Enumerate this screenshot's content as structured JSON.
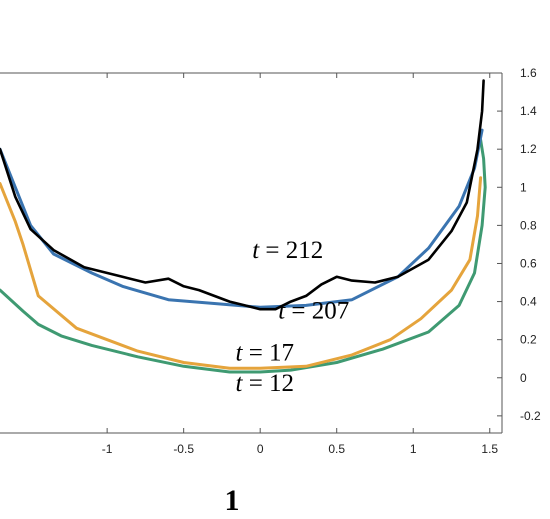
{
  "chart_data": {
    "type": "line",
    "xlim": [
      -1.7,
      1.58
    ],
    "ylim": [
      -0.29,
      1.6
    ],
    "x_ticks": [
      "-1",
      "-0.5",
      "0",
      "0.5",
      "1",
      "1.5"
    ],
    "x_tick_values": [
      -1,
      -0.5,
      0,
      0.5,
      1,
      1.5
    ],
    "y_ticks": [
      "1.6",
      "1.4",
      "1.2",
      "1",
      "0.8",
      "0.6",
      "0.4",
      "0.2",
      "0",
      "-0.2"
    ],
    "y_tick_values": [
      1.6,
      1.4,
      1.2,
      1,
      0.8,
      0.6,
      0.4,
      0.2,
      0,
      -0.2
    ],
    "y_axis_side": "right",
    "grid": false,
    "bottom_label": "1",
    "series": [
      {
        "name": "t = 12",
        "color": "#3f9a72",
        "label_pos": [
          0.03,
          -0.07
        ],
        "x": [
          -1.7,
          -1.55,
          -1.45,
          -1.3,
          -1.1,
          -0.8,
          -0.5,
          -0.2,
          0,
          0.2,
          0.5,
          0.8,
          1.1,
          1.3,
          1.4,
          1.45,
          1.47,
          1.46,
          1.44
        ],
        "y": [
          0.46,
          0.35,
          0.28,
          0.22,
          0.17,
          0.11,
          0.06,
          0.03,
          0.03,
          0.04,
          0.08,
          0.15,
          0.24,
          0.38,
          0.55,
          0.8,
          1.0,
          1.15,
          1.25
        ]
      },
      {
        "name": "t = 17",
        "color": "#e5a43c",
        "label_pos": [
          0.03,
          0.09
        ],
        "x": [
          -1.7,
          -1.6,
          -1.55,
          -1.45,
          -1.2,
          -0.8,
          -0.5,
          -0.2,
          0,
          0.3,
          0.6,
          0.85,
          1.05,
          1.25,
          1.37,
          1.42,
          1.44
        ],
        "y": [
          1.02,
          0.82,
          0.7,
          0.43,
          0.26,
          0.14,
          0.08,
          0.05,
          0.05,
          0.06,
          0.12,
          0.2,
          0.31,
          0.46,
          0.62,
          0.85,
          1.05
        ]
      },
      {
        "name": "t = 207",
        "color": "#3a74b0",
        "label_pos": [
          0.35,
          0.31
        ],
        "x": [
          -1.7,
          -1.6,
          -1.5,
          -1.35,
          -1.1,
          -0.9,
          -0.6,
          -0.3,
          0,
          0.3,
          0.6,
          0.9,
          1.1,
          1.3,
          1.4,
          1.45
        ],
        "y": [
          1.2,
          1.0,
          0.8,
          0.65,
          0.55,
          0.48,
          0.41,
          0.39,
          0.37,
          0.38,
          0.41,
          0.53,
          0.68,
          0.9,
          1.1,
          1.3
        ]
      },
      {
        "name": "t = 212",
        "color": "#000000",
        "label_pos": [
          0.18,
          0.63
        ],
        "x": [
          -1.7,
          -1.6,
          -1.5,
          -1.35,
          -1.15,
          -0.9,
          -0.75,
          -0.6,
          -0.5,
          -0.4,
          -0.3,
          -0.2,
          -0.1,
          0,
          0.1,
          0.2,
          0.3,
          0.4,
          0.5,
          0.6,
          0.75,
          0.9,
          1.1,
          1.25,
          1.35,
          1.42,
          1.45,
          1.46
        ],
        "y": [
          1.2,
          0.95,
          0.78,
          0.67,
          0.58,
          0.53,
          0.5,
          0.52,
          0.48,
          0.46,
          0.43,
          0.4,
          0.38,
          0.36,
          0.36,
          0.4,
          0.43,
          0.49,
          0.53,
          0.51,
          0.5,
          0.53,
          0.62,
          0.77,
          0.92,
          1.2,
          1.4,
          1.56
        ]
      }
    ]
  }
}
